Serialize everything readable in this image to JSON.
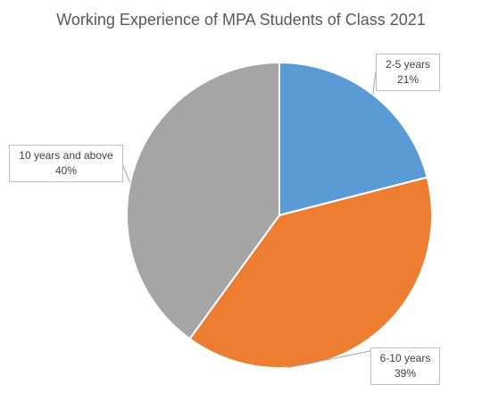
{
  "chart_data": {
    "type": "pie",
    "title": "Working Experience of MPA Students of Class 2021",
    "slices": [
      {
        "label": "2-5 years",
        "value": 21,
        "pct_label": "21%",
        "color": "#5b9bd5"
      },
      {
        "label": "6-10 years",
        "value": 39,
        "pct_label": "39%",
        "color": "#ed7d31"
      },
      {
        "label": "10 years and above",
        "value": 40,
        "pct_label": "40%",
        "color": "#a5a5a5"
      }
    ],
    "start_angle": "12 o'clock",
    "direction": "clockwise",
    "legend": "none",
    "data_labels": "callouts"
  }
}
